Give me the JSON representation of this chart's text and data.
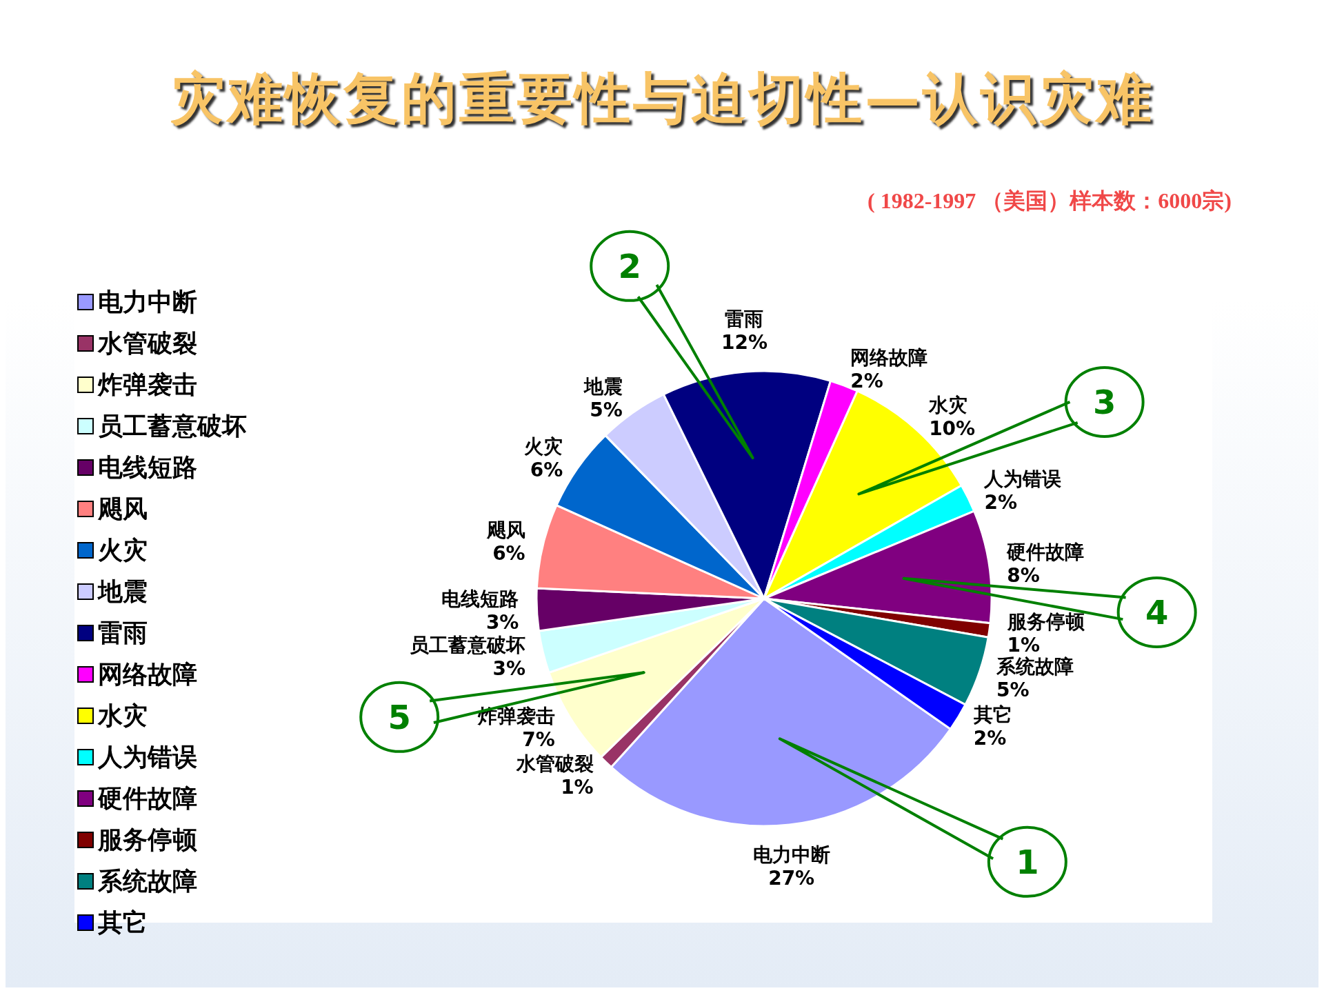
{
  "chart_data": {
    "type": "pie",
    "title": "灾难恢复的重要性与迫切性—认识灾难",
    "categories": [
      "电力中断",
      "水管破裂",
      "炸弹袭击",
      "员工蓄意破坏",
      "电线短路",
      "飓风",
      "火灾",
      "地震",
      "雷雨",
      "网络故障",
      "水灾",
      "人为错误",
      "硬件故障",
      "服务停顿",
      "系统故障",
      "其它"
    ],
    "values": [
      27,
      1,
      7,
      3,
      3,
      6,
      6,
      5,
      12,
      2,
      10,
      2,
      8,
      1,
      5,
      2
    ],
    "colors": [
      "#9999ff",
      "#993366",
      "#ffffcc",
      "#ccffff",
      "#660066",
      "#ff8080",
      "#0066cc",
      "#ccccff",
      "#000080",
      "#ff00ff",
      "#ffff00",
      "#00ffff",
      "#800080",
      "#800000",
      "#008080",
      "#0000ff"
    ],
    "value_labels": [
      "27%",
      "1%",
      "7%",
      "3%",
      "3%",
      "6%",
      "6%",
      "5%",
      "12%",
      "2%",
      "10%",
      "2%",
      "8%",
      "1%",
      "5%",
      "2%"
    ],
    "legend": "left",
    "annotations": [
      "( 1982-1997 （美国）样本数：6000宗)",
      {
        "text": "1",
        "x": "电力中断"
      },
      {
        "text": "2",
        "x": "雷雨"
      },
      {
        "text": "3",
        "x": "水灾"
      },
      {
        "text": "4",
        "x": "硬件故障"
      },
      {
        "text": "5",
        "x": "炸弹袭击"
      }
    ]
  }
}
